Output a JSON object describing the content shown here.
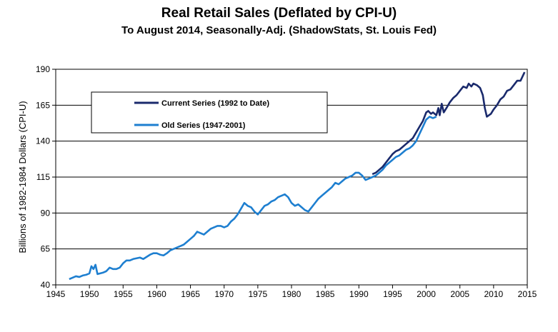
{
  "chart_data": {
    "type": "line",
    "title": "Real Retail Sales (Deflated by CPI-U)",
    "subtitle": "To August 2014, Seasonally-Adj. (ShadowStats, St. Louis Fed)",
    "xlabel": "",
    "ylabel": "Billions of 1982-1984 Dollars (CPI-U)",
    "xlim": [
      1945,
      2015
    ],
    "ylim": [
      40,
      190
    ],
    "xticks": [
      1945,
      1950,
      1955,
      1960,
      1965,
      1970,
      1975,
      1980,
      1985,
      1990,
      1995,
      2000,
      2005,
      2010,
      2015
    ],
    "yticks": [
      40,
      65,
      90,
      115,
      140,
      165,
      190
    ],
    "grid": "horizontal",
    "legend_position": "upper-left",
    "series": [
      {
        "name": "Current Series (1992 to Date)",
        "color": "#1a2a6c",
        "points": [
          [
            1992.0,
            117
          ],
          [
            1992.5,
            118
          ],
          [
            1993.0,
            120
          ],
          [
            1993.5,
            122
          ],
          [
            1994.0,
            125
          ],
          [
            1994.5,
            128
          ],
          [
            1995.0,
            131
          ],
          [
            1995.5,
            133
          ],
          [
            1996.0,
            134
          ],
          [
            1996.5,
            136
          ],
          [
            1997.0,
            138
          ],
          [
            1997.5,
            140
          ],
          [
            1998.0,
            142
          ],
          [
            1998.5,
            146
          ],
          [
            1999.0,
            150
          ],
          [
            1999.5,
            154
          ],
          [
            2000.0,
            160
          ],
          [
            2000.3,
            161
          ],
          [
            2000.7,
            159
          ],
          [
            2001.0,
            160
          ],
          [
            2001.5,
            158
          ],
          [
            2001.8,
            163
          ],
          [
            2002.0,
            158
          ],
          [
            2002.3,
            166
          ],
          [
            2002.6,
            160
          ],
          [
            2003.0,
            163
          ],
          [
            2003.5,
            167
          ],
          [
            2004.0,
            170
          ],
          [
            2004.5,
            172
          ],
          [
            2005.0,
            175
          ],
          [
            2005.5,
            178
          ],
          [
            2006.0,
            177
          ],
          [
            2006.3,
            180
          ],
          [
            2006.7,
            178
          ],
          [
            2007.0,
            180
          ],
          [
            2007.5,
            179
          ],
          [
            2008.0,
            177
          ],
          [
            2008.4,
            172
          ],
          [
            2008.7,
            163
          ],
          [
            2009.0,
            157
          ],
          [
            2009.3,
            158
          ],
          [
            2009.6,
            159
          ],
          [
            2010.0,
            162
          ],
          [
            2010.5,
            165
          ],
          [
            2011.0,
            169
          ],
          [
            2011.5,
            171
          ],
          [
            2012.0,
            175
          ],
          [
            2012.5,
            176
          ],
          [
            2013.0,
            179
          ],
          [
            2013.5,
            182
          ],
          [
            2014.0,
            182
          ],
          [
            2014.3,
            185
          ],
          [
            2014.6,
            188
          ]
        ]
      },
      {
        "name": "Old Series (1947-2001)",
        "color": "#1e7fd0",
        "points": [
          [
            1947.0,
            44
          ],
          [
            1947.5,
            45
          ],
          [
            1948.0,
            46
          ],
          [
            1948.5,
            45.5
          ],
          [
            1949.0,
            46.5
          ],
          [
            1949.5,
            47
          ],
          [
            1950.0,
            48
          ],
          [
            1950.3,
            53
          ],
          [
            1950.6,
            51
          ],
          [
            1950.9,
            54
          ],
          [
            1951.2,
            47.5
          ],
          [
            1951.6,
            48
          ],
          [
            1952.0,
            48.5
          ],
          [
            1952.5,
            49.5
          ],
          [
            1953.0,
            52
          ],
          [
            1953.5,
            51
          ],
          [
            1954.0,
            51
          ],
          [
            1954.5,
            52
          ],
          [
            1955.0,
            55
          ],
          [
            1955.5,
            57
          ],
          [
            1956.0,
            57
          ],
          [
            1956.5,
            58
          ],
          [
            1957.0,
            58.5
          ],
          [
            1957.5,
            59
          ],
          [
            1958.0,
            58
          ],
          [
            1958.5,
            59.5
          ],
          [
            1959.0,
            61
          ],
          [
            1959.5,
            62
          ],
          [
            1960.0,
            62
          ],
          [
            1960.5,
            61
          ],
          [
            1961.0,
            60.5
          ],
          [
            1961.5,
            62
          ],
          [
            1962.0,
            64
          ],
          [
            1962.5,
            65
          ],
          [
            1963.0,
            66
          ],
          [
            1963.5,
            67
          ],
          [
            1964.0,
            68
          ],
          [
            1964.5,
            70
          ],
          [
            1965.0,
            72
          ],
          [
            1965.5,
            74
          ],
          [
            1966.0,
            77
          ],
          [
            1966.5,
            76
          ],
          [
            1967.0,
            75
          ],
          [
            1967.5,
            77
          ],
          [
            1968.0,
            79
          ],
          [
            1968.5,
            80
          ],
          [
            1969.0,
            81
          ],
          [
            1969.5,
            81
          ],
          [
            1970.0,
            80
          ],
          [
            1970.5,
            81
          ],
          [
            1971.0,
            84
          ],
          [
            1971.5,
            86
          ],
          [
            1972.0,
            89
          ],
          [
            1972.5,
            93
          ],
          [
            1973.0,
            97
          ],
          [
            1973.5,
            95
          ],
          [
            1974.0,
            94
          ],
          [
            1974.5,
            91
          ],
          [
            1975.0,
            89
          ],
          [
            1975.5,
            92
          ],
          [
            1976.0,
            95
          ],
          [
            1976.5,
            96
          ],
          [
            1977.0,
            98
          ],
          [
            1977.5,
            99
          ],
          [
            1978.0,
            101
          ],
          [
            1978.5,
            102
          ],
          [
            1979.0,
            103
          ],
          [
            1979.5,
            101
          ],
          [
            1980.0,
            97
          ],
          [
            1980.5,
            95
          ],
          [
            1981.0,
            96
          ],
          [
            1981.5,
            94
          ],
          [
            1982.0,
            92
          ],
          [
            1982.5,
            91
          ],
          [
            1983.0,
            94
          ],
          [
            1983.5,
            97
          ],
          [
            1984.0,
            100
          ],
          [
            1984.5,
            102
          ],
          [
            1985.0,
            104
          ],
          [
            1985.5,
            106
          ],
          [
            1986.0,
            108
          ],
          [
            1986.5,
            111
          ],
          [
            1987.0,
            110
          ],
          [
            1987.5,
            112
          ],
          [
            1988.0,
            114
          ],
          [
            1988.5,
            115
          ],
          [
            1989.0,
            116
          ],
          [
            1989.5,
            118
          ],
          [
            1990.0,
            118
          ],
          [
            1990.5,
            116
          ],
          [
            1991.0,
            113
          ],
          [
            1991.5,
            114
          ],
          [
            1992.0,
            115
          ],
          [
            1992.5,
            116
          ],
          [
            1993.0,
            118
          ],
          [
            1993.5,
            120
          ],
          [
            1994.0,
            123
          ],
          [
            1994.5,
            125
          ],
          [
            1995.0,
            127
          ],
          [
            1995.5,
            129
          ],
          [
            1996.0,
            130
          ],
          [
            1996.5,
            132
          ],
          [
            1997.0,
            134
          ],
          [
            1997.5,
            135
          ],
          [
            1998.0,
            137
          ],
          [
            1998.5,
            140
          ],
          [
            1999.0,
            145
          ],
          [
            1999.5,
            150
          ],
          [
            2000.0,
            155
          ],
          [
            2000.5,
            157
          ],
          [
            2001.0,
            156
          ],
          [
            2001.5,
            157
          ]
        ]
      }
    ]
  }
}
